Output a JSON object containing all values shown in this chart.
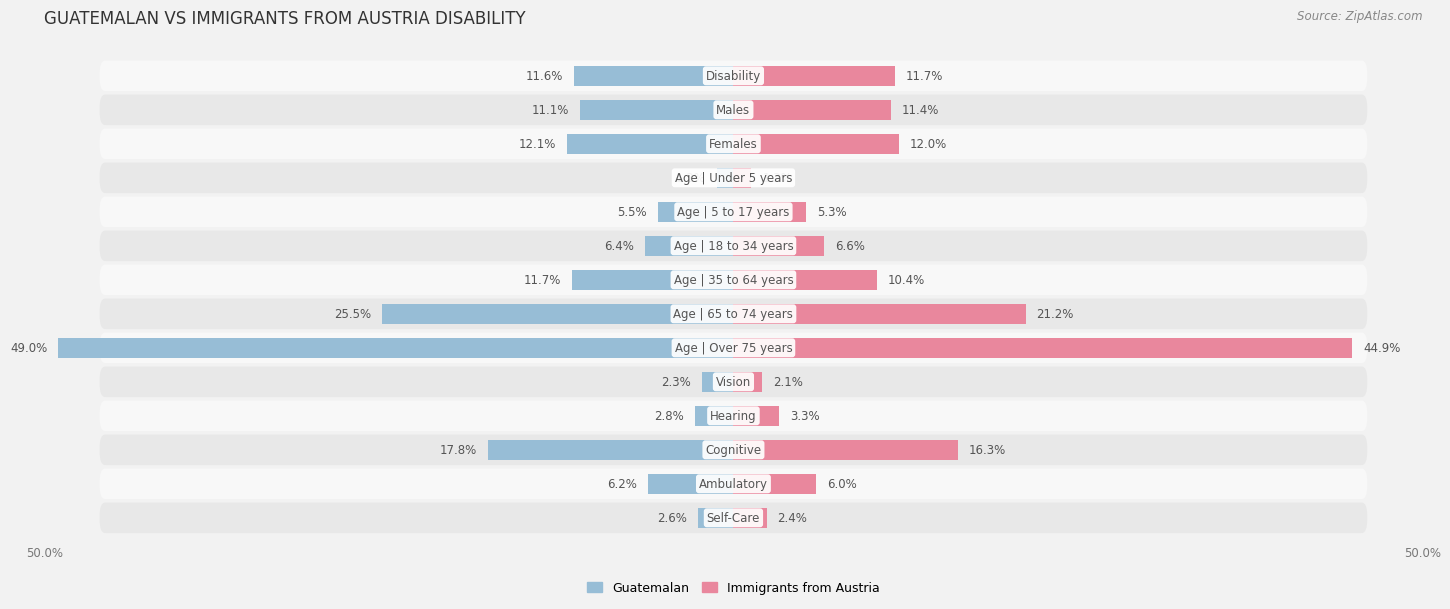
{
  "title": "GUATEMALAN VS IMMIGRANTS FROM AUSTRIA DISABILITY",
  "source": "Source: ZipAtlas.com",
  "categories": [
    "Disability",
    "Males",
    "Females",
    "Age | Under 5 years",
    "Age | 5 to 17 years",
    "Age | 18 to 34 years",
    "Age | 35 to 64 years",
    "Age | 65 to 74 years",
    "Age | Over 75 years",
    "Vision",
    "Hearing",
    "Cognitive",
    "Ambulatory",
    "Self-Care"
  ],
  "guatemalan": [
    11.6,
    11.1,
    12.1,
    1.2,
    5.5,
    6.4,
    11.7,
    25.5,
    49.0,
    2.3,
    2.8,
    17.8,
    6.2,
    2.6
  ],
  "austria": [
    11.7,
    11.4,
    12.0,
    1.3,
    5.3,
    6.6,
    10.4,
    21.2,
    44.9,
    2.1,
    3.3,
    16.3,
    6.0,
    2.4
  ],
  "max_val": 50.0,
  "blue_color": "#97bdd6",
  "pink_color": "#e9879d",
  "bar_height": 0.58,
  "bg_color": "#f2f2f2",
  "row_bg_even": "#f8f8f8",
  "row_bg_odd": "#e8e8e8",
  "label_fontsize": 8.5,
  "title_fontsize": 12,
  "source_fontsize": 8.5,
  "legend_fontsize": 9,
  "value_fontsize": 8.5,
  "cat_label_fontsize": 8.5
}
